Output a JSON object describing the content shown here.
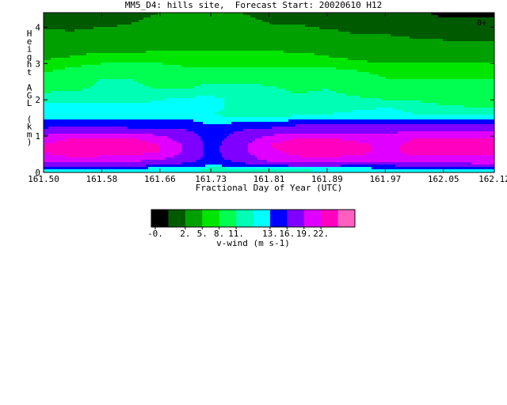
{
  "chart_data": {
    "type": "heatmap",
    "title": "MM5_D4: hills site,  Forecast Start: 20020610 H12",
    "xlabel": "Fractional Day of Year (UTC)",
    "ylabel": "Height AGL (km)",
    "x_ticks": [
      "161.50",
      "161.58",
      "161.66",
      "161.73",
      "161.81",
      "161.89",
      "161.97",
      "162.05",
      "162.12"
    ],
    "y_ticks": [
      "0",
      "1",
      "2",
      "3",
      "4"
    ],
    "xlim": [
      161.5,
      162.12
    ],
    "ylim": [
      0,
      4.4
    ],
    "corner_label": "0+",
    "colorbar": {
      "label": "v-wind (m s-1)",
      "tick_labels": [
        "-0.",
        "2.",
        "5.",
        "8.",
        "11.",
        "13.",
        "16.",
        "19.",
        "22."
      ],
      "colors": [
        "#000000",
        "#005a00",
        "#00a000",
        "#00e600",
        "#00ff50",
        "#00ffb4",
        "#00ffff",
        "#0000ff",
        "#8000ff",
        "#e000ff",
        "#ff00c0",
        "#ff60c0"
      ],
      "levels": [
        -1,
        0,
        2.5,
        5,
        6.5,
        8,
        9.5,
        11,
        13,
        16,
        19,
        22,
        23.5
      ]
    },
    "x_days": [
      161.5,
      161.54,
      161.58,
      161.62,
      161.66,
      161.7,
      161.73,
      161.77,
      161.81,
      161.85,
      161.89,
      161.93,
      161.97,
      162.01,
      162.05,
      162.09,
      162.12
    ],
    "heights_km": [
      0.0,
      0.1,
      0.2,
      0.35,
      0.55,
      0.75,
      0.95,
      1.15,
      1.3,
      1.45,
      1.6,
      1.8,
      2.0,
      2.3,
      2.6,
      2.9,
      3.2,
      3.5,
      3.8,
      4.1,
      4.4
    ],
    "v_wind": [
      [
        9.5,
        9.5,
        9.5,
        9.5,
        9.5,
        9.5,
        9.5,
        9.5,
        9.5,
        9.5,
        9.5,
        9.5,
        9.5,
        9.5,
        9.5,
        9.5,
        9.5
      ],
      [
        12,
        12,
        11,
        11,
        10,
        10,
        9,
        9,
        9,
        9,
        10,
        10,
        11,
        11,
        12,
        12,
        12
      ],
      [
        15,
        15,
        14,
        14,
        13,
        12,
        11,
        12,
        13,
        14,
        14,
        13,
        13,
        14,
        14,
        15,
        15
      ],
      [
        17,
        18,
        17,
        17,
        16,
        14,
        12,
        14,
        17,
        18,
        18,
        17,
        17,
        18,
        18,
        18,
        18
      ],
      [
        19,
        21,
        21,
        20,
        19,
        15,
        12,
        15,
        18,
        20,
        21,
        20,
        18,
        20,
        20,
        20,
        20
      ],
      [
        19,
        21,
        21,
        21,
        19,
        15,
        12,
        15,
        19,
        21,
        21,
        20,
        18,
        20,
        21,
        21,
        21
      ],
      [
        17,
        19,
        19,
        19,
        17,
        14,
        12,
        14,
        17,
        19,
        19,
        18,
        17,
        19,
        19,
        19,
        19
      ],
      [
        14,
        15,
        15,
        14,
        14,
        13,
        12,
        13,
        14,
        15,
        15,
        15,
        15,
        16,
        16,
        16,
        16
      ],
      [
        12,
        12,
        12,
        12,
        12,
        12,
        11,
        12,
        12,
        13,
        13,
        13,
        13,
        13,
        13,
        13,
        13
      ],
      [
        11,
        11,
        11,
        11,
        11,
        11,
        10,
        10,
        10,
        11,
        11,
        11,
        11,
        11,
        11,
        11,
        11
      ],
      [
        10,
        10,
        10,
        10,
        10,
        10,
        9.5,
        9,
        9,
        9,
        9.5,
        10,
        10,
        9.5,
        9,
        9,
        9
      ],
      [
        10,
        10,
        10,
        10,
        10,
        10,
        10,
        9,
        8.5,
        8.5,
        8.7,
        9,
        9.5,
        9,
        8.2,
        8,
        8
      ],
      [
        9,
        9,
        9,
        9,
        9.5,
        10,
        10,
        9,
        8.5,
        8.2,
        8.5,
        8.2,
        8,
        7.8,
        7.5,
        7.5,
        7.5
      ],
      [
        7.5,
        7.8,
        8.2,
        8.2,
        8,
        8,
        8.5,
        8.5,
        8.2,
        7.8,
        8,
        7.5,
        7.5,
        7.2,
        7,
        7,
        7
      ],
      [
        7,
        7.5,
        8,
        8,
        7.5,
        7.5,
        7.5,
        7.5,
        7.5,
        7.5,
        7.5,
        7.5,
        6.5,
        6.5,
        6.5,
        6.5,
        6.5
      ],
      [
        6,
        6.5,
        7,
        7,
        7,
        6.5,
        6.5,
        6.5,
        6.5,
        6.5,
        6.5,
        6,
        5.5,
        5.5,
        5.5,
        5.5,
        5.5
      ],
      [
        4.5,
        5,
        5.5,
        5.5,
        5.5,
        5.5,
        5.5,
        5.5,
        5.5,
        5.5,
        5,
        4.5,
        4,
        4,
        4,
        4,
        4
      ],
      [
        4,
        4,
        4,
        4,
        4.5,
        4.5,
        4.5,
        4.5,
        4.5,
        4,
        4,
        3.5,
        3.5,
        3.5,
        3,
        3,
        3
      ],
      [
        3,
        3,
        3.5,
        3.5,
        3.5,
        3.5,
        3.5,
        3.5,
        3,
        3,
        3,
        2.5,
        2.5,
        2,
        2,
        1.5,
        1.5
      ],
      [
        2,
        1.5,
        2,
        2.5,
        3,
        3,
        3,
        3,
        2.5,
        2.5,
        2,
        2,
        1.5,
        1,
        0.5,
        0.5,
        0.5
      ],
      [
        1.5,
        1,
        1.5,
        2,
        2.5,
        2.5,
        2.5,
        2.5,
        2,
        2,
        1.5,
        1.5,
        1,
        0.5,
        -0.5,
        -0.5,
        -0.5
      ]
    ]
  }
}
